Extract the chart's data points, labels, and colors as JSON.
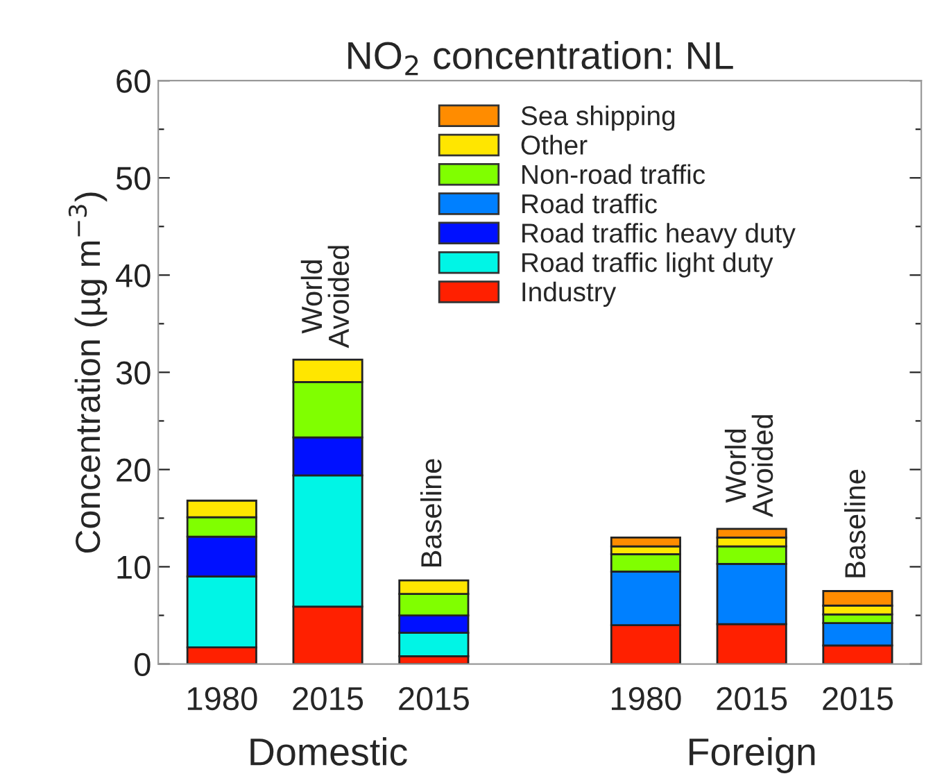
{
  "chart_data": {
    "type": "bar",
    "stacked": true,
    "title": "NO$_{2}$ concentration: NL",
    "ylabel": "Concentration (µg m$^{−3}$)",
    "categories": [
      "1980",
      "2015",
      "2015",
      null,
      "1980",
      "2015",
      "2015"
    ],
    "series": [
      {
        "name": "Industry",
        "color": "#ff2000",
        "values": [
          1.7,
          5.9,
          0.8,
          null,
          4.0,
          4.1,
          1.9
        ]
      },
      {
        "name": "Road traffic light duty",
        "color": "#00f5e6",
        "values": [
          7.3,
          13.5,
          2.4,
          null,
          null,
          null,
          null
        ]
      },
      {
        "name": "Road traffic heavy duty",
        "color": "#0010ff",
        "values": [
          4.1,
          3.9,
          1.8,
          null,
          null,
          null,
          null
        ]
      },
      {
        "name": "Road traffic",
        "color": "#0080ff",
        "values": [
          null,
          null,
          null,
          null,
          5.5,
          6.2,
          2.3
        ]
      },
      {
        "name": "Non-road traffic",
        "color": "#80ff00",
        "values": [
          2.0,
          5.7,
          2.2,
          null,
          1.8,
          1.8,
          0.9
        ]
      },
      {
        "name": "Other",
        "color": "#ffe600",
        "values": [
          1.7,
          2.3,
          1.4,
          null,
          0.8,
          0.9,
          0.9
        ]
      },
      {
        "name": "Sea shipping",
        "color": "#ff8c00",
        "values": [
          null,
          null,
          null,
          null,
          0.9,
          0.9,
          1.5
        ]
      }
    ],
    "annotations": [
      "World\nAvoided",
      "Baseline",
      "World\nAvoided",
      "Baseline",
      "Domestic",
      "Foreign"
    ],
    "ylim": [
      0,
      60
    ],
    "yticks": [
      0,
      {
        "value": 5,
        "label": null
      },
      10,
      {
        "value": 15,
        "label": null
      },
      20,
      {
        "value": 25,
        "label": null
      },
      30,
      {
        "value": 35,
        "label": null
      },
      40,
      {
        "value": 45,
        "label": null
      },
      50,
      {
        "value": 55,
        "label": null
      },
      60
    ],
    "grid": false,
    "legend": "top right"
  }
}
